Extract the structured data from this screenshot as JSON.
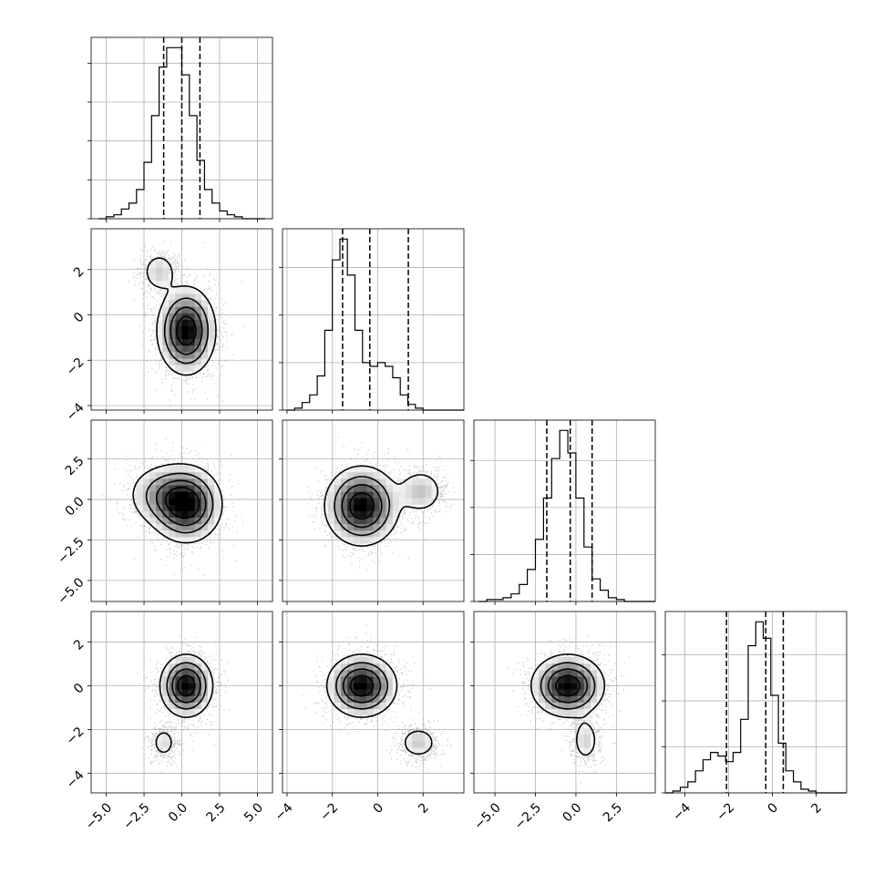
{
  "chart_data": {
    "type": "corner",
    "grid": true,
    "n_params": 4,
    "params": [
      {
        "range": [
          -6,
          6
        ],
        "ticks": [
          -5.0,
          -2.5,
          0.0,
          2.5,
          5.0
        ],
        "tick_labels": [
          "−5.0",
          "−2.5",
          "0.0",
          "2.5",
          "5.0"
        ],
        "hist": {
          "bin_start": -5.5,
          "bin_width": 0.5,
          "counts": [
            0,
            1,
            2,
            5,
            8,
            15,
            29,
            53,
            78,
            88,
            88,
            74,
            53,
            30,
            15,
            8,
            4,
            2,
            1,
            0,
            0,
            0
          ],
          "quantiles": [
            -1.2,
            0.0,
            1.2
          ]
        }
      },
      {
        "range": [
          -4.2,
          3.8
        ],
        "ticks": [
          -4,
          -2,
          0,
          2
        ],
        "tick_labels": [
          "−4",
          "−2",
          "0",
          "2"
        ],
        "hist": {
          "bin_start": -4,
          "bin_width": 0.333,
          "counts": [
            0,
            1,
            4,
            8,
            18,
            42,
            79,
            90,
            71,
            42,
            25,
            23,
            25,
            23,
            17,
            8,
            3,
            1,
            0,
            0,
            0,
            0,
            0,
            0
          ],
          "quantiles": [
            -1.55,
            -0.35,
            1.35
          ]
        }
      },
      {
        "range": [
          -6.3,
          4.9
        ],
        "ticks": [
          -5.0,
          -2.5,
          0.0,
          2.5
        ],
        "tick_labels": [
          "−5.0",
          "−2.5",
          "0.0",
          "2.5"
        ],
        "hist": {
          "bin_start": -6,
          "bin_width": 0.5,
          "counts": [
            0,
            1,
            1,
            2,
            4,
            9,
            17,
            33,
            55,
            76,
            91,
            79,
            55,
            29,
            12,
            6,
            2,
            1,
            0,
            0,
            0,
            0
          ],
          "quantiles": [
            -1.8,
            -0.35,
            1.0
          ]
        }
      },
      {
        "range": [
          -4.9,
          3.4
        ],
        "ticks": [
          -4,
          -2,
          0,
          2
        ],
        "tick_labels": [
          "−4",
          "−2",
          "0",
          "2"
        ],
        "hist": {
          "bin_start": -4.9,
          "bin_width": 0.345,
          "counts": [
            0,
            1,
            3,
            6,
            12,
            18,
            22,
            20,
            17,
            22,
            40,
            80,
            93,
            84,
            53,
            27,
            12,
            6,
            2,
            1,
            0,
            0,
            0,
            0
          ],
          "quantiles": [
            -2.1,
            -0.3,
            0.5
          ]
        }
      }
    ],
    "pairs": [
      {
        "row": 1,
        "col": 0,
        "blobs": [
          {
            "cx": 0.3,
            "cy": -0.7,
            "sx": 0.95,
            "sy": 0.95,
            "w": 1.0
          },
          {
            "cx": -1.5,
            "cy": 1.9,
            "sx": 0.65,
            "sy": 0.5,
            "w": 0.25
          }
        ]
      },
      {
        "row": 2,
        "col": 0,
        "blobs": [
          {
            "cx": 0.3,
            "cy": -0.3,
            "sx": 1.15,
            "sy": 1.15,
            "w": 1.0
          },
          {
            "cx": -1.4,
            "cy": 0.3,
            "sx": 1.2,
            "sy": 1.0,
            "w": 0.35
          }
        ]
      },
      {
        "row": 2,
        "col": 1,
        "blobs": [
          {
            "cx": -0.7,
            "cy": -0.4,
            "sx": 0.8,
            "sy": 1.2,
            "w": 1.0
          },
          {
            "cx": 1.9,
            "cy": 0.5,
            "sx": 0.55,
            "sy": 0.75,
            "w": 0.3
          }
        ]
      },
      {
        "row": 3,
        "col": 0,
        "blobs": [
          {
            "cx": 0.3,
            "cy": 0.0,
            "sx": 0.85,
            "sy": 0.7,
            "w": 1.0
          },
          {
            "cx": -1.2,
            "cy": -2.6,
            "sx": 0.45,
            "sy": 0.4,
            "w": 0.22
          }
        ]
      },
      {
        "row": 3,
        "col": 1,
        "blobs": [
          {
            "cx": -0.7,
            "cy": 0.0,
            "sx": 0.75,
            "sy": 0.7,
            "w": 1.0
          },
          {
            "cx": 1.8,
            "cy": -2.6,
            "sx": 0.45,
            "sy": 0.4,
            "w": 0.28
          }
        ]
      },
      {
        "row": 3,
        "col": 2,
        "blobs": [
          {
            "cx": -0.5,
            "cy": 0.0,
            "sx": 1.1,
            "sy": 0.7,
            "w": 1.0
          },
          {
            "cx": 0.6,
            "cy": -2.5,
            "sx": 0.45,
            "sy": 0.55,
            "w": 0.25
          }
        ]
      }
    ],
    "contour_levels": [
      0.12,
      0.32,
      0.55,
      0.8
    ]
  }
}
